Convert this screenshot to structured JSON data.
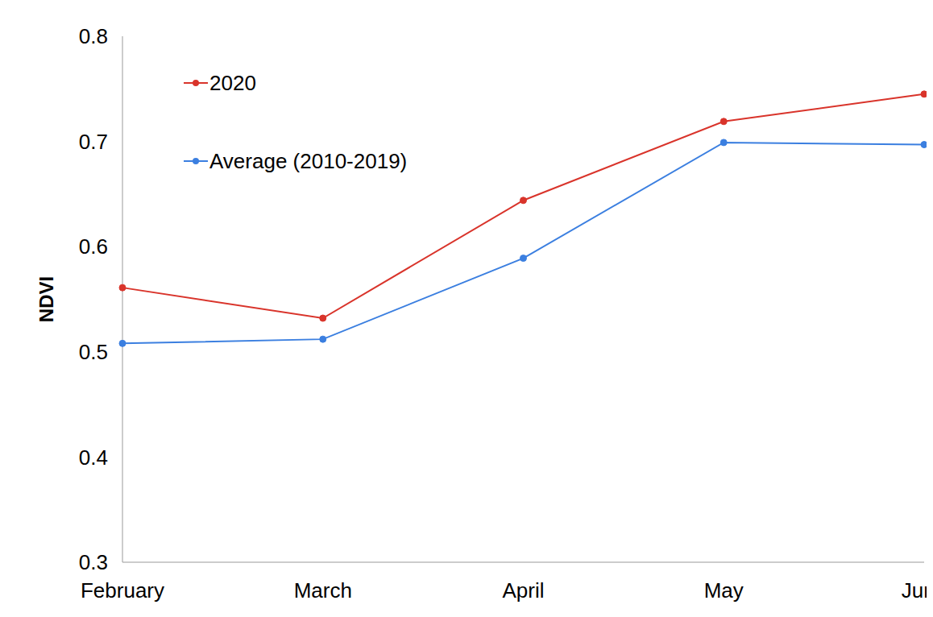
{
  "chart_data": {
    "type": "line",
    "y_label": "NDVI",
    "categories": [
      "February",
      "March",
      "April",
      "May",
      "June"
    ],
    "series": [
      {
        "name": "2020",
        "color": "#d9342b",
        "values": [
          0.561,
          0.532,
          0.644,
          0.719,
          0.745
        ]
      },
      {
        "name": "Average (2010-2019)",
        "color": "#3b7fe0",
        "values": [
          0.508,
          0.512,
          0.589,
          0.699,
          0.697
        ]
      }
    ],
    "ylim": [
      0.3,
      0.8
    ],
    "yticks": [
      0.3,
      0.4,
      0.5,
      0.6,
      0.7,
      0.8
    ],
    "grid": false,
    "legend": "upper left",
    "marker": "circle"
  }
}
